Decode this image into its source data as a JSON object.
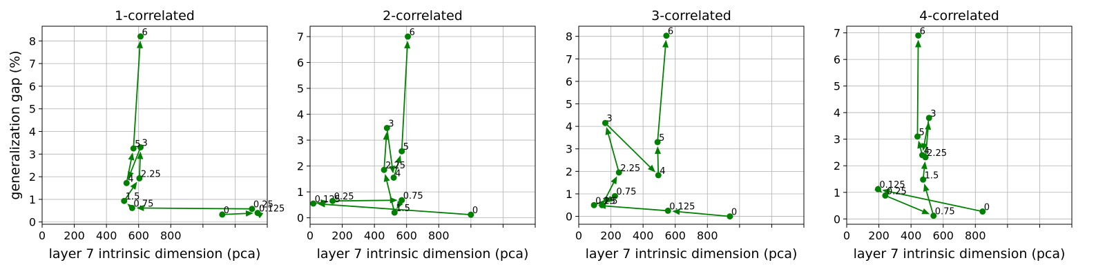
{
  "chart_data": [
    {
      "type": "scatter",
      "title": "1-correlated",
      "xlabel": "layer 7 intrinsic dimension (pca)",
      "ylabel": "generalization gap (%)",
      "xlim": [
        0,
        1400
      ],
      "ylim": [
        -0.1,
        8.65
      ],
      "xticks": [
        0,
        200,
        400,
        600,
        800,
        1000,
        1200,
        1400
      ],
      "xticklabels": [
        "0",
        "200",
        "400",
        "600",
        "800",
        "",
        "",
        ""
      ],
      "yticks": [
        0,
        1,
        2,
        3,
        4,
        5,
        6,
        7,
        8
      ],
      "grid": true,
      "points": [
        {
          "label": "0",
          "x": 1120,
          "y": 0.33
        },
        {
          "label": "0.125",
          "x": 1340,
          "y": 0.4
        },
        {
          "label": "0.25",
          "x": 1305,
          "y": 0.58
        },
        {
          "label": "0.75",
          "x": 560,
          "y": 0.62
        },
        {
          "label": "1.5",
          "x": 510,
          "y": 0.93
        },
        {
          "label": "2.25",
          "x": 605,
          "y": 1.93
        },
        {
          "label": "3",
          "x": 612,
          "y": 3.3
        },
        {
          "label": "4",
          "x": 525,
          "y": 1.72
        },
        {
          "label": "5",
          "x": 568,
          "y": 3.25
        },
        {
          "label": "6",
          "x": 612,
          "y": 8.2
        }
      ]
    },
    {
      "type": "scatter",
      "title": "2-correlated",
      "xlabel": "layer 7 intrinsic dimension (pca)",
      "ylabel": "",
      "xlim": [
        0,
        1400
      ],
      "ylim": [
        -0.25,
        7.4
      ],
      "xticks": [
        0,
        200,
        400,
        600,
        800,
        1000,
        1200,
        1400
      ],
      "xticklabels": [
        "0",
        "200",
        "400",
        "600",
        "800",
        "",
        "",
        ""
      ],
      "yticks": [
        0,
        1,
        2,
        3,
        4,
        5,
        6,
        7
      ],
      "grid": true,
      "points": [
        {
          "label": "0",
          "x": 1000,
          "y": 0.12
        },
        {
          "label": "0.125",
          "x": 20,
          "y": 0.55
        },
        {
          "label": "0.25",
          "x": 140,
          "y": 0.65
        },
        {
          "label": "0.75",
          "x": 570,
          "y": 0.68
        },
        {
          "label": "1.5",
          "x": 525,
          "y": 0.2
        },
        {
          "label": "2.25",
          "x": 460,
          "y": 1.85
        },
        {
          "label": "3",
          "x": 478,
          "y": 3.47
        },
        {
          "label": "4",
          "x": 520,
          "y": 1.55
        },
        {
          "label": "5",
          "x": 570,
          "y": 2.57
        },
        {
          "label": "6",
          "x": 608,
          "y": 7.0
        }
      ]
    },
    {
      "type": "scatter",
      "title": "3-correlated",
      "xlabel": "layer 7 intrinsic dimension (pca)",
      "ylabel": "",
      "xlim": [
        0,
        1400
      ],
      "ylim": [
        -0.35,
        8.45
      ],
      "xticks": [
        0,
        200,
        400,
        600,
        800,
        1000,
        1200,
        1400
      ],
      "xticklabels": [
        "0",
        "200",
        "400",
        "600",
        "800",
        "",
        "",
        ""
      ],
      "yticks": [
        0,
        1,
        2,
        3,
        4,
        5,
        6,
        7,
        8
      ],
      "grid": true,
      "points": [
        {
          "label": "0",
          "x": 940,
          "y": 0.0
        },
        {
          "label": "0.125",
          "x": 555,
          "y": 0.25
        },
        {
          "label": "0.25",
          "x": 95,
          "y": 0.5
        },
        {
          "label": "0.75",
          "x": 225,
          "y": 0.9
        },
        {
          "label": "1.5",
          "x": 145,
          "y": 0.5
        },
        {
          "label": "2.25",
          "x": 250,
          "y": 1.95
        },
        {
          "label": "3",
          "x": 165,
          "y": 4.15
        },
        {
          "label": "4",
          "x": 495,
          "y": 1.83
        },
        {
          "label": "5",
          "x": 490,
          "y": 3.3
        },
        {
          "label": "6",
          "x": 545,
          "y": 8.03
        }
      ]
    },
    {
      "type": "scatter",
      "title": "4-correlated",
      "xlabel": "layer 7 intrinsic dimension (pca)",
      "ylabel": "",
      "xlim": [
        0,
        1400
      ],
      "ylim": [
        -0.2,
        7.25
      ],
      "xticks": [
        0,
        200,
        400,
        600,
        800,
        1000,
        1200,
        1400
      ],
      "xticklabels": [
        "0",
        "200",
        "400",
        "600",
        "800",
        "",
        "",
        ""
      ],
      "yticks": [
        0,
        1,
        2,
        3,
        4,
        5,
        6,
        7
      ],
      "grid": true,
      "points": [
        {
          "label": "0",
          "x": 845,
          "y": 0.28
        },
        {
          "label": "0.125",
          "x": 195,
          "y": 1.12
        },
        {
          "label": "0.25",
          "x": 240,
          "y": 0.88
        },
        {
          "label": "0.75",
          "x": 540,
          "y": 0.12
        },
        {
          "label": "1.5",
          "x": 475,
          "y": 1.48
        },
        {
          "label": "2.25",
          "x": 490,
          "y": 2.32
        },
        {
          "label": "3",
          "x": 512,
          "y": 3.8
        },
        {
          "label": "4",
          "x": 470,
          "y": 2.4
        },
        {
          "label": "5",
          "x": 440,
          "y": 3.1
        },
        {
          "label": "6",
          "x": 445,
          "y": 6.9
        }
      ]
    }
  ]
}
